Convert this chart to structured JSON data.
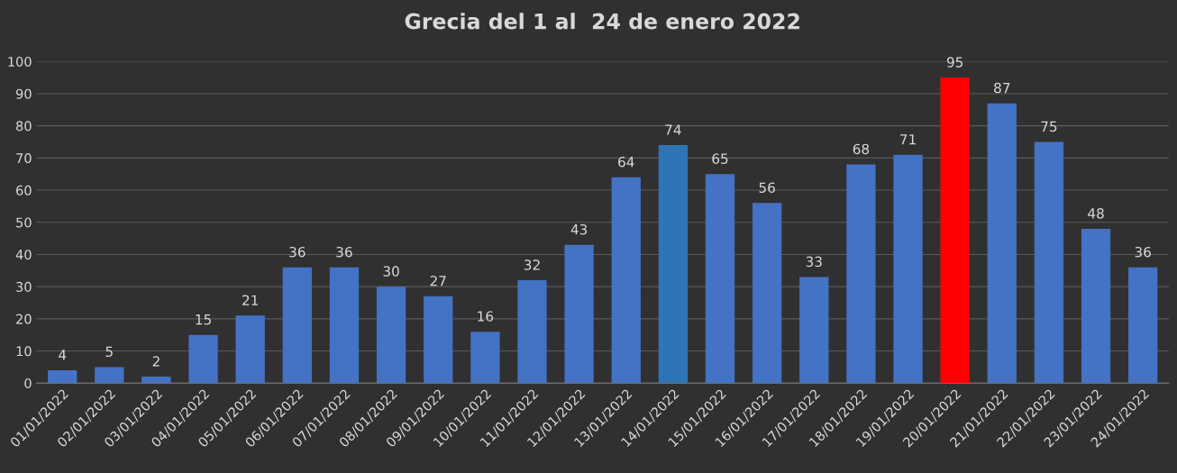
{
  "chart_data": {
    "type": "bar",
    "title": "Grecia del 1 al  24 de enero 2022",
    "categories": [
      "01/01/2022",
      "02/01/2022",
      "03/01/2022",
      "04/01/2022",
      "05/01/2022",
      "06/01/2022",
      "07/01/2022",
      "08/01/2022",
      "09/01/2022",
      "10/01/2022",
      "11/01/2022",
      "12/01/2022",
      "13/01/2022",
      "14/01/2022",
      "15/01/2022",
      "16/01/2022",
      "17/01/2022",
      "18/01/2022",
      "19/01/2022",
      "20/01/2022",
      "21/01/2022",
      "22/01/2022",
      "23/01/2022",
      "24/01/2022"
    ],
    "values": [
      4,
      5,
      2,
      15,
      21,
      36,
      36,
      30,
      27,
      16,
      32,
      43,
      64,
      74,
      65,
      56,
      33,
      68,
      71,
      95,
      87,
      75,
      48,
      36
    ],
    "colors": [
      "#4472c4",
      "#4472c4",
      "#4472c4",
      "#4472c4",
      "#4472c4",
      "#4472c4",
      "#4472c4",
      "#4472c4",
      "#4472c4",
      "#4472c4",
      "#4472c4",
      "#4472c4",
      "#4472c4",
      "#2e75b6",
      "#4472c4",
      "#4472c4",
      "#4472c4",
      "#4472c4",
      "#4472c4",
      "#ff0000",
      "#4472c4",
      "#4472c4",
      "#4472c4",
      "#4472c4"
    ],
    "ylim": [
      0,
      100
    ],
    "yticks": [
      0,
      10,
      20,
      30,
      40,
      50,
      60,
      70,
      80,
      90,
      100
    ],
    "grid": "y",
    "data_labels": true,
    "legend": false
  }
}
